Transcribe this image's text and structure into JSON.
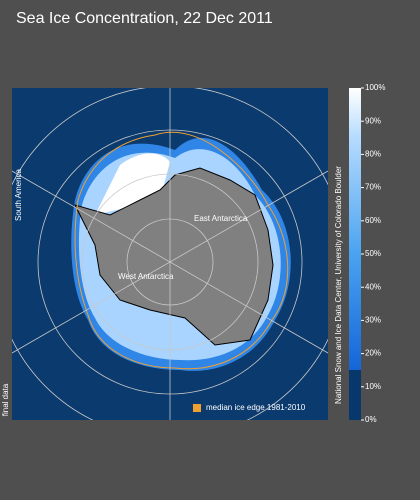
{
  "header": {
    "title": "Sea Ice Concentration, 22 Dec 2011"
  },
  "map": {
    "labels": {
      "south_america": "South America",
      "east_antarctica": "East Antarctica",
      "west_antarctica": "West Antarctica"
    },
    "status": "final data",
    "legend": "median ice edge 1981-2010",
    "credit": "National Snow and Ice Data Center, University of Colorado Boulder"
  },
  "colorbar": {
    "range": [
      0,
      100
    ],
    "ticks": [
      {
        "value": 0,
        "label": "0%"
      },
      {
        "value": 10,
        "label": "10%"
      },
      {
        "value": 20,
        "label": "20%"
      },
      {
        "value": 30,
        "label": "30%"
      },
      {
        "value": 40,
        "label": "40%"
      },
      {
        "value": 50,
        "label": "50%"
      },
      {
        "value": 60,
        "label": "60%"
      },
      {
        "value": 70,
        "label": "70%"
      },
      {
        "value": 80,
        "label": "80%"
      },
      {
        "value": 90,
        "label": "90%"
      },
      {
        "value": 100,
        "label": "100%"
      }
    ]
  }
}
